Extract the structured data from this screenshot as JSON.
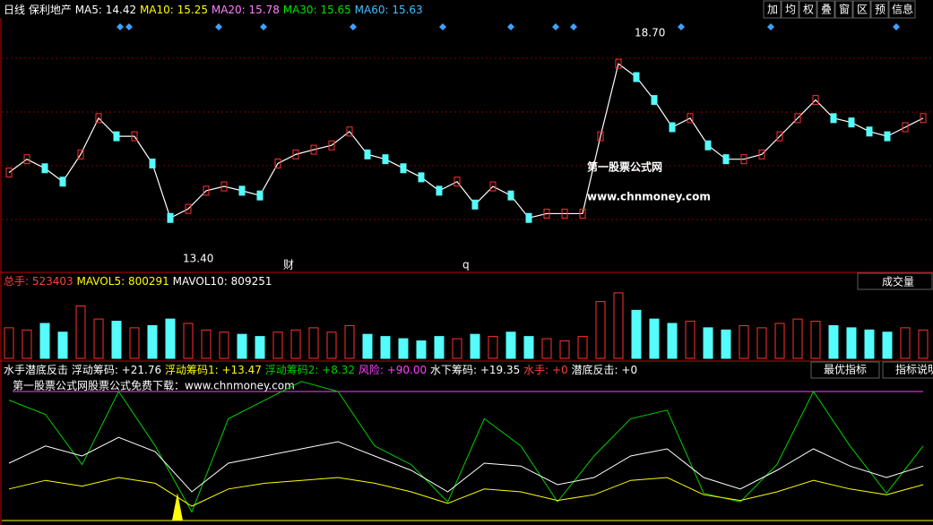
{
  "header": {
    "period": "日线",
    "stock": "保利地产",
    "ma": [
      {
        "label": "MA5:",
        "value": "14.42",
        "color": "#ffffff"
      },
      {
        "label": "MA10:",
        "value": "15.25",
        "color": "#ffff00"
      },
      {
        "label": "MA20:",
        "value": "15.78",
        "color": "#ff80ff"
      },
      {
        "label": "MA30:",
        "value": "15.65",
        "color": "#00e000"
      },
      {
        "label": "MA60:",
        "value": "15.63",
        "color": "#40c0ff"
      }
    ],
    "toolbar": [
      "加",
      "均",
      "权",
      "叠",
      "窗",
      "区",
      "预",
      "信息"
    ]
  },
  "price_panel": {
    "high_label": "18.70",
    "low_label": "13.40",
    "marker_cai": "财",
    "marker_q": "q",
    "watermark_title": "第一股票公式网",
    "watermark_url": "www.chnmoney.com",
    "ylim": [
      13.17,
      19.06
    ],
    "closes": [
      15.48,
      15.79,
      15.58,
      15.27,
      15.9,
      16.74,
      16.32,
      16.32,
      15.69,
      14.43,
      14.64,
      15.06,
      15.16,
      15.06,
      14.95,
      15.69,
      15.9,
      16.01,
      16.11,
      16.43,
      15.9,
      15.79,
      15.58,
      15.37,
      15.06,
      15.27,
      14.74,
      15.16,
      14.95,
      14.43,
      14.53,
      14.53,
      14.53,
      16.32,
      18.0,
      17.69,
      17.16,
      16.53,
      16.74,
      16.11,
      15.79,
      15.79,
      15.9,
      16.32,
      16.74,
      17.16,
      16.74,
      16.64,
      16.43,
      16.32,
      16.53,
      16.74
    ]
  },
  "volume_panel": {
    "items": [
      {
        "label": "总手:",
        "value": "523403",
        "color": "#ff4040"
      },
      {
        "label": "MAVOL5:",
        "value": "800291",
        "color": "#ffff00"
      },
      {
        "label": "MAVOL10:",
        "value": "809251",
        "color": "#ffffff"
      }
    ],
    "button": "成交量",
    "ylim": [
      0,
      1600000
    ],
    "volumes": [
      700000,
      650000,
      800000,
      600000,
      1200000,
      900000,
      850000,
      700000,
      750000,
      900000,
      800000,
      650000,
      600000,
      550000,
      500000,
      600000,
      650000,
      700000,
      600000,
      750000,
      550000,
      500000,
      450000,
      400000,
      500000,
      450000,
      550000,
      500000,
      600000,
      500000,
      450000,
      400000,
      500000,
      1300000,
      1500000,
      1100000,
      900000,
      800000,
      850000,
      700000,
      650000,
      750000,
      700000,
      800000,
      900000,
      850000,
      750000,
      700000,
      650000,
      600000,
      700000,
      650000
    ]
  },
  "indicator_panel": {
    "name": "水手潜底反击",
    "items": [
      {
        "label": "浮动筹码:",
        "value": "+21.76",
        "color": "#ffffff"
      },
      {
        "label": "浮动筹码1:",
        "value": "+13.47",
        "color": "#ffff00"
      },
      {
        "label": "浮动筹码2:",
        "value": "+8.32",
        "color": "#00d000"
      },
      {
        "label": "风险:",
        "value": "+90.00",
        "color": "#ff40ff"
      },
      {
        "label": "水下筹码:",
        "value": "+19.35",
        "color": "#ffffff"
      },
      {
        "label": "水手:",
        "value": "+0",
        "color": "#ff4040"
      },
      {
        "label": "潜底反击:",
        "value": "+0",
        "color": "#ffffff"
      }
    ],
    "buttons": [
      "最优指标",
      "指标说明"
    ],
    "note": "第一股票公式网股票公式免费下载：www.chnmoney.com",
    "ylim": [
      0,
      100
    ],
    "risk": 90,
    "green": [
      84,
      74,
      39,
      90,
      52,
      6,
      71,
      84,
      97,
      90,
      52,
      39,
      13,
      71,
      52,
      13,
      45,
      71,
      77,
      19,
      13,
      39,
      90,
      52,
      19,
      52
    ],
    "white": [
      40,
      52,
      45,
      58,
      48,
      20,
      40,
      45,
      50,
      55,
      45,
      35,
      20,
      40,
      38,
      25,
      30,
      45,
      50,
      30,
      22,
      35,
      50,
      38,
      30,
      38
    ],
    "yellow": [
      22,
      28,
      24,
      30,
      26,
      10,
      22,
      26,
      28,
      30,
      26,
      20,
      12,
      22,
      20,
      14,
      18,
      28,
      30,
      18,
      14,
      20,
      28,
      22,
      18,
      25
    ]
  }
}
